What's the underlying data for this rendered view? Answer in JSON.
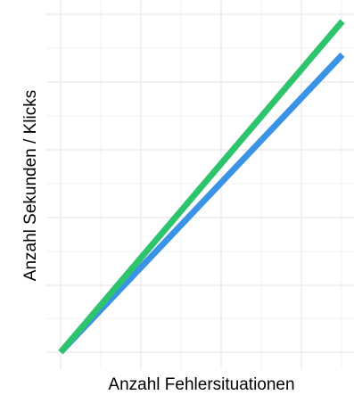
{
  "chart_data": {
    "type": "line",
    "title": "",
    "xlabel": "Anzahl Fehlersituationen",
    "ylabel": "Anzahl Sekunden / Klicks",
    "show_tick_labels": false,
    "grid": true,
    "legend": "none",
    "xlim": [
      0,
      1
    ],
    "ylim": [
      0,
      1
    ],
    "series": [
      {
        "color": "#3b93e6",
        "x": [
          0,
          1
        ],
        "y": [
          0,
          0.89
        ]
      },
      {
        "color": "#2ec46e",
        "x": [
          0,
          1
        ],
        "y": [
          0,
          0.99
        ]
      }
    ],
    "grid_color": "#ebebeb"
  }
}
